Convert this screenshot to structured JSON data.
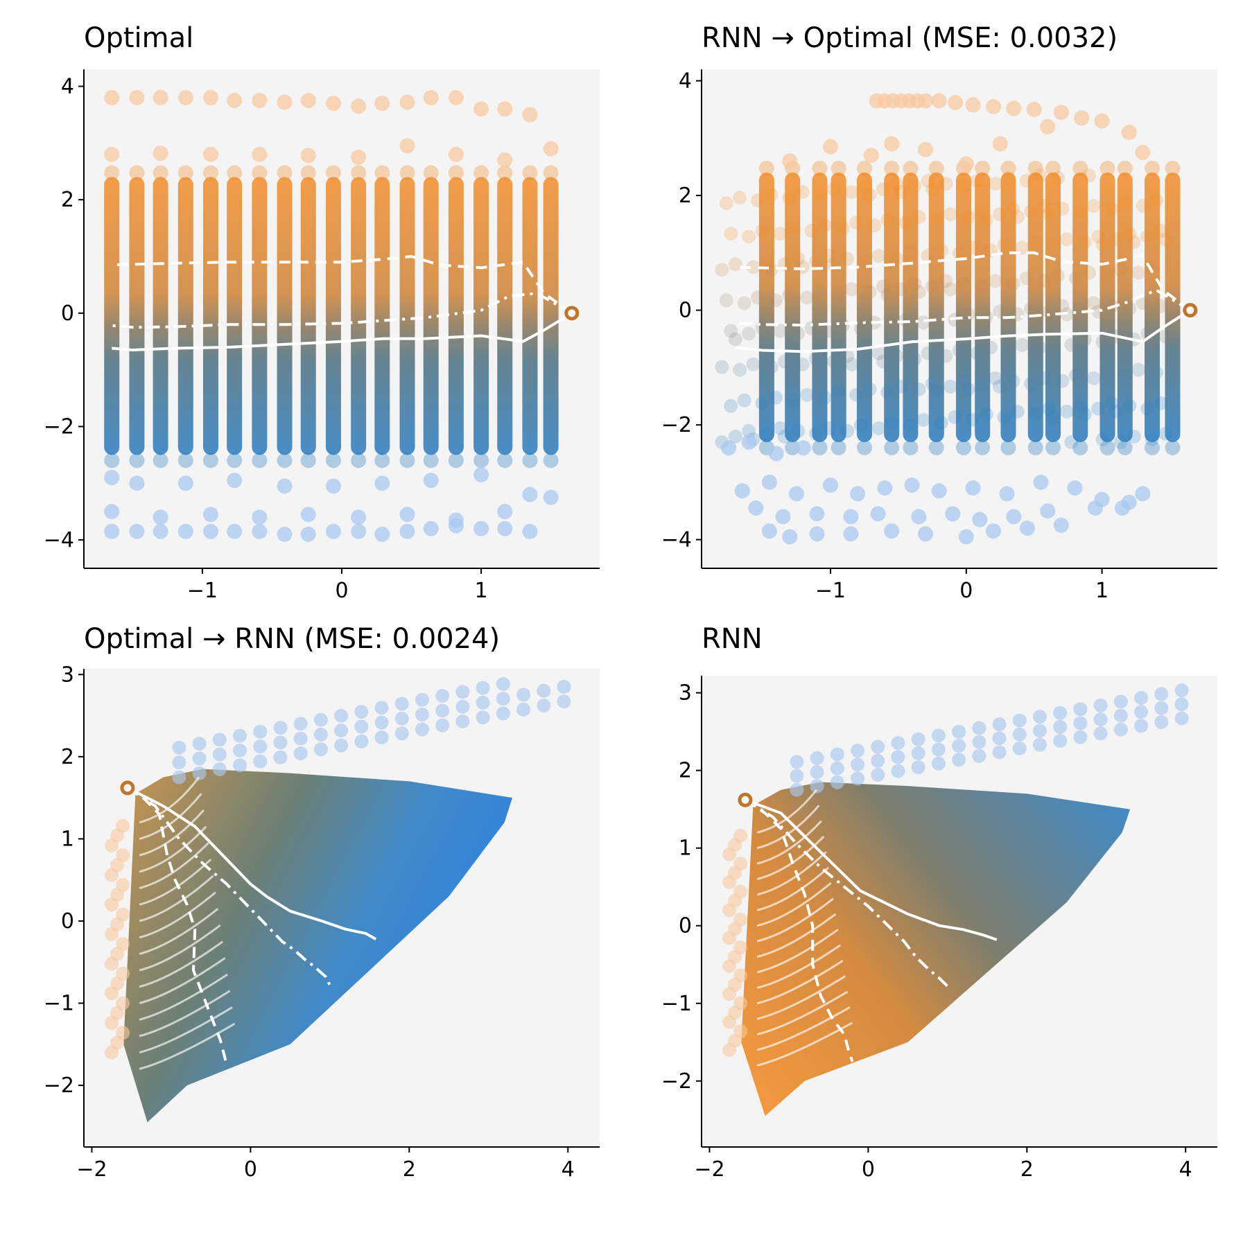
{
  "colors": {
    "orange": "#f28e2b",
    "blue": "#2f7fc1",
    "light_orange": "#f7c9a0",
    "light_blue": "#aac8f0",
    "panel_bg": "#f4f4f4",
    "trajectory": "#ffffff"
  },
  "chart_data": [
    {
      "id": "p0",
      "type": "scatter",
      "title": "Optimal",
      "xlim": [
        -1.85,
        1.85
      ],
      "ylim": [
        -4.5,
        4.3
      ],
      "xticks": [
        -1,
        0,
        1
      ],
      "xtick_labels": [
        "−1",
        "0",
        "1"
      ],
      "yticks": [
        -4,
        -2,
        0,
        2,
        4
      ],
      "ytick_labels": [
        "−4",
        "−2",
        "0",
        "2",
        "4"
      ],
      "grid": false,
      "color_encoding": "orange at high values, blue at low values",
      "columns_x": [
        -1.65,
        -1.47,
        -1.3,
        -1.12,
        -0.94,
        -0.77,
        -0.59,
        -0.41,
        -0.24,
        -0.06,
        0.12,
        0.29,
        0.47,
        0.64,
        0.82,
        1.0,
        1.17,
        1.35,
        1.5
      ],
      "dense_band": [
        -2.5,
        2.4
      ],
      "outliers": [
        {
          "x": -1.65,
          "y": 3.8
        },
        {
          "x": -1.47,
          "y": 3.8
        },
        {
          "x": -1.3,
          "y": 3.8
        },
        {
          "x": -1.12,
          "y": 3.8
        },
        {
          "x": -0.94,
          "y": 3.8
        },
        {
          "x": -0.77,
          "y": 3.75
        },
        {
          "x": -0.59,
          "y": 3.75
        },
        {
          "x": -0.41,
          "y": 3.72
        },
        {
          "x": -0.24,
          "y": 3.75
        },
        {
          "x": -0.06,
          "y": 3.7
        },
        {
          "x": 0.12,
          "y": 3.65
        },
        {
          "x": 0.29,
          "y": 3.7
        },
        {
          "x": 0.47,
          "y": 3.72
        },
        {
          "x": 0.64,
          "y": 3.8
        },
        {
          "x": 0.82,
          "y": 3.8
        },
        {
          "x": 1.0,
          "y": 3.6
        },
        {
          "x": 1.17,
          "y": 3.6
        },
        {
          "x": 1.35,
          "y": 3.5
        },
        {
          "x": -1.65,
          "y": 2.8
        },
        {
          "x": -1.3,
          "y": 2.82
        },
        {
          "x": -0.94,
          "y": 2.8
        },
        {
          "x": -0.59,
          "y": 2.8
        },
        {
          "x": -0.24,
          "y": 2.78
        },
        {
          "x": 0.12,
          "y": 2.75
        },
        {
          "x": 0.47,
          "y": 2.95
        },
        {
          "x": 0.82,
          "y": 2.8
        },
        {
          "x": 1.17,
          "y": 2.7
        },
        {
          "x": 1.5,
          "y": 2.9
        },
        {
          "x": -1.65,
          "y": -2.9
        },
        {
          "x": -1.47,
          "y": -3.0
        },
        {
          "x": -1.12,
          "y": -3.0
        },
        {
          "x": -0.77,
          "y": -2.95
        },
        {
          "x": -0.41,
          "y": -3.05
        },
        {
          "x": -0.06,
          "y": -3.05
        },
        {
          "x": 0.29,
          "y": -3.0
        },
        {
          "x": 0.64,
          "y": -2.95
        },
        {
          "x": 1.0,
          "y": -2.85
        },
        {
          "x": 1.35,
          "y": -3.2
        },
        {
          "x": 1.5,
          "y": -3.25
        },
        {
          "x": -1.65,
          "y": -3.5
        },
        {
          "x": -1.3,
          "y": -3.6
        },
        {
          "x": -0.94,
          "y": -3.55
        },
        {
          "x": -0.59,
          "y": -3.6
        },
        {
          "x": -0.24,
          "y": -3.55
        },
        {
          "x": 0.12,
          "y": -3.6
        },
        {
          "x": 0.47,
          "y": -3.55
        },
        {
          "x": 0.82,
          "y": -3.65
        },
        {
          "x": 1.17,
          "y": -3.5
        },
        {
          "x": -1.65,
          "y": -3.85
        },
        {
          "x": -1.47,
          "y": -3.85
        },
        {
          "x": -1.3,
          "y": -3.85
        },
        {
          "x": -1.12,
          "y": -3.85
        },
        {
          "x": -0.94,
          "y": -3.85
        },
        {
          "x": -0.77,
          "y": -3.85
        },
        {
          "x": -0.59,
          "y": -3.85
        },
        {
          "x": -0.41,
          "y": -3.9
        },
        {
          "x": -0.24,
          "y": -3.9
        },
        {
          "x": -0.06,
          "y": -3.85
        },
        {
          "x": 0.12,
          "y": -3.85
        },
        {
          "x": 0.29,
          "y": -3.9
        },
        {
          "x": 0.47,
          "y": -3.85
        },
        {
          "x": 0.64,
          "y": -3.8
        },
        {
          "x": 0.82,
          "y": -3.75
        },
        {
          "x": 1.0,
          "y": -3.8
        },
        {
          "x": 1.17,
          "y": -3.8
        },
        {
          "x": 1.35,
          "y": -3.85
        }
      ],
      "start_marker": {
        "x": 1.65,
        "y": 0.0
      },
      "trajectories": [
        {
          "style": "dashed",
          "x": [
            1.65,
            1.45,
            1.3,
            1.0,
            0.7,
            0.5,
            0.3,
            0.0,
            -0.4,
            -0.8,
            -1.2,
            -1.65
          ],
          "y": [
            0.0,
            0.35,
            0.9,
            0.8,
            0.85,
            1.0,
            0.95,
            0.9,
            0.9,
            0.9,
            0.88,
            0.85
          ]
        },
        {
          "style": "dashdot",
          "x": [
            1.65,
            1.4,
            1.2,
            1.0,
            0.6,
            0.3,
            0.0,
            -0.4,
            -0.8,
            -1.2,
            -1.5,
            -1.65
          ],
          "y": [
            0.0,
            0.35,
            0.3,
            0.05,
            -0.08,
            -0.13,
            -0.18,
            -0.2,
            -0.2,
            -0.24,
            -0.25,
            -0.22
          ]
        },
        {
          "style": "solid",
          "x": [
            1.65,
            1.45,
            1.3,
            1.0,
            0.6,
            0.3,
            0.0,
            -0.4,
            -0.8,
            -1.2,
            -1.5,
            -1.65
          ],
          "y": [
            0.0,
            -0.3,
            -0.5,
            -0.4,
            -0.45,
            -0.45,
            -0.5,
            -0.55,
            -0.6,
            -0.62,
            -0.65,
            -0.62
          ]
        }
      ]
    },
    {
      "id": "p1",
      "type": "scatter",
      "title": "RNN → Optimal (MSE: 0.0032)",
      "xlim": [
        -1.95,
        1.85
      ],
      "ylim": [
        -4.5,
        4.2
      ],
      "xticks": [
        -1,
        0,
        1
      ],
      "xtick_labels": [
        "−1",
        "0",
        "1"
      ],
      "yticks": [
        -4,
        -2,
        0,
        2,
        4
      ],
      "ytick_labels": [
        "−4",
        "−2",
        "0",
        "2",
        "4"
      ],
      "grid": false,
      "color_encoding": "orange at high values, blue at low values",
      "columns_x": [
        -1.45,
        -1.28,
        -1.1,
        -0.92,
        -0.75,
        -0.57,
        -0.39,
        -0.22,
        -0.04,
        0.14,
        0.31,
        0.49,
        0.66,
        0.84,
        1.02,
        1.19,
        1.37,
        1.5
      ],
      "dense_band": [
        -2.3,
        2.4
      ],
      "outliers": [
        {
          "x": -0.66,
          "y": 3.65
        },
        {
          "x": -0.6,
          "y": 3.65
        },
        {
          "x": -0.54,
          "y": 3.65
        },
        {
          "x": -0.48,
          "y": 3.65
        },
        {
          "x": -0.42,
          "y": 3.65
        },
        {
          "x": -0.36,
          "y": 3.65
        },
        {
          "x": -0.3,
          "y": 3.65
        },
        {
          "x": -0.2,
          "y": 3.65
        },
        {
          "x": -0.08,
          "y": 3.62
        },
        {
          "x": 0.05,
          "y": 3.58
        },
        {
          "x": 0.2,
          "y": 3.55
        },
        {
          "x": 0.35,
          "y": 3.52
        },
        {
          "x": 0.5,
          "y": 3.5
        },
        {
          "x": 0.7,
          "y": 3.45
        },
        {
          "x": 0.85,
          "y": 3.35
        },
        {
          "x": 1.0,
          "y": 3.3
        },
        {
          "x": 1.2,
          "y": 3.1
        },
        {
          "x": 0.6,
          "y": 3.2
        },
        {
          "x": -1.3,
          "y": 2.6
        },
        {
          "x": -1.0,
          "y": 2.85
        },
        {
          "x": -0.7,
          "y": 2.7
        },
        {
          "x": -0.55,
          "y": 2.9
        },
        {
          "x": -0.3,
          "y": 2.8
        },
        {
          "x": 0.0,
          "y": 2.55
        },
        {
          "x": 0.25,
          "y": 2.9
        },
        {
          "x": 1.3,
          "y": 2.75
        },
        {
          "x": -1.75,
          "y": -2.4
        },
        {
          "x": -1.6,
          "y": -2.3
        },
        {
          "x": -1.4,
          "y": -2.5
        },
        {
          "x": -1.2,
          "y": -2.4
        },
        {
          "x": -1.65,
          "y": -3.15
        },
        {
          "x": -1.45,
          "y": -3.0
        },
        {
          "x": -1.25,
          "y": -3.2
        },
        {
          "x": -1.0,
          "y": -3.05
        },
        {
          "x": -0.8,
          "y": -3.2
        },
        {
          "x": -0.6,
          "y": -3.1
        },
        {
          "x": -0.4,
          "y": -3.05
        },
        {
          "x": -0.2,
          "y": -3.15
        },
        {
          "x": 0.05,
          "y": -3.1
        },
        {
          "x": 0.3,
          "y": -3.2
        },
        {
          "x": 0.55,
          "y": -3.0
        },
        {
          "x": 0.8,
          "y": -3.1
        },
        {
          "x": 1.0,
          "y": -3.3
        },
        {
          "x": 1.2,
          "y": -3.35
        },
        {
          "x": 1.3,
          "y": -3.2
        },
        {
          "x": -1.55,
          "y": -3.45
        },
        {
          "x": -1.35,
          "y": -3.6
        },
        {
          "x": -1.1,
          "y": -3.55
        },
        {
          "x": -0.85,
          "y": -3.6
        },
        {
          "x": -0.65,
          "y": -3.55
        },
        {
          "x": -0.35,
          "y": -3.6
        },
        {
          "x": -0.1,
          "y": -3.55
        },
        {
          "x": 0.1,
          "y": -3.65
        },
        {
          "x": 0.35,
          "y": -3.6
        },
        {
          "x": 0.6,
          "y": -3.5
        },
        {
          "x": 0.95,
          "y": -3.45
        },
        {
          "x": 1.15,
          "y": -3.45
        },
        {
          "x": -1.45,
          "y": -3.85
        },
        {
          "x": -1.3,
          "y": -3.95
        },
        {
          "x": -1.1,
          "y": -3.9
        },
        {
          "x": -0.85,
          "y": -3.9
        },
        {
          "x": -0.55,
          "y": -3.85
        },
        {
          "x": -0.3,
          "y": -3.9
        },
        {
          "x": 0.0,
          "y": -3.95
        },
        {
          "x": 0.2,
          "y": -3.85
        },
        {
          "x": 0.45,
          "y": -3.8
        },
        {
          "x": 0.7,
          "y": -3.75
        }
      ],
      "start_marker": {
        "x": 1.65,
        "y": 0.0
      },
      "trajectories": [
        {
          "style": "dashed",
          "x": [
            1.65,
            1.45,
            1.3,
            1.0,
            0.7,
            0.5,
            0.3,
            0.0,
            -0.4,
            -0.8,
            -1.2,
            -1.7
          ],
          "y": [
            0.0,
            0.35,
            0.95,
            0.8,
            0.85,
            1.0,
            1.0,
            0.9,
            0.82,
            0.75,
            0.72,
            0.75
          ]
        },
        {
          "style": "dashdot",
          "x": [
            1.65,
            1.4,
            1.2,
            1.0,
            0.6,
            0.3,
            0.0,
            -0.4,
            -0.8,
            -1.2,
            -1.5,
            -1.7
          ],
          "y": [
            0.0,
            0.35,
            0.15,
            0.0,
            -0.08,
            -0.13,
            -0.13,
            -0.2,
            -0.22,
            -0.26,
            -0.25,
            -0.22
          ]
        },
        {
          "style": "solid",
          "x": [
            1.65,
            1.45,
            1.3,
            1.0,
            0.6,
            0.3,
            0.0,
            -0.4,
            -0.8,
            -1.2,
            -1.5,
            -1.7
          ],
          "y": [
            0.0,
            -0.3,
            -0.55,
            -0.4,
            -0.42,
            -0.45,
            -0.5,
            -0.55,
            -0.68,
            -0.72,
            -0.7,
            -0.65
          ]
        }
      ]
    },
    {
      "id": "p2",
      "type": "scatter",
      "title": "Optimal → RNN (MSE: 0.0024)",
      "xlim": [
        -2.1,
        4.4
      ],
      "ylim": [
        -2.75,
        3.07
      ],
      "xticks": [
        -2,
        0,
        2,
        4
      ],
      "xtick_labels": [
        "−2",
        "0",
        "2",
        "4"
      ],
      "yticks": [
        -2,
        -1,
        0,
        1,
        2,
        3
      ],
      "ytick_labels": [
        "−2",
        "−1",
        "0",
        "1",
        "2",
        "3"
      ],
      "grid": false,
      "color_encoding": "orange at upper-left edge, blue toward the right",
      "arc_count": 16,
      "start_marker": {
        "x": -1.55,
        "y": 1.62
      },
      "trajectories": [
        {
          "style": "dashed",
          "x": [
            -1.55,
            -1.35,
            -1.15,
            -1.05,
            -0.95,
            -0.8,
            -0.7,
            -0.72,
            -0.6,
            -0.48,
            -0.38,
            -0.3
          ],
          "y": [
            1.62,
            1.5,
            1.3,
            0.8,
            0.5,
            0.2,
            -0.1,
            -0.6,
            -0.9,
            -1.2,
            -1.45,
            -1.75
          ]
        },
        {
          "style": "dashdot",
          "x": [
            -1.55,
            -1.2,
            -0.9,
            -0.6,
            -0.3,
            -0.05,
            0.2,
            0.4,
            0.55,
            0.7,
            0.8,
            0.95,
            1.0
          ],
          "y": [
            1.62,
            1.4,
            1.0,
            0.7,
            0.45,
            0.2,
            -0.05,
            -0.25,
            -0.35,
            -0.48,
            -0.55,
            -0.68,
            -0.78
          ]
        },
        {
          "style": "solid",
          "x": [
            -1.55,
            -1.1,
            -0.7,
            -0.4,
            0.0,
            0.2,
            0.5,
            0.9,
            1.2,
            1.45,
            1.58
          ],
          "y": [
            1.62,
            1.4,
            1.15,
            0.85,
            0.45,
            0.3,
            0.12,
            0.0,
            -0.1,
            -0.15,
            -0.22
          ]
        }
      ]
    },
    {
      "id": "p3",
      "type": "scatter",
      "title": "RNN",
      "xlim": [
        -2.1,
        4.4
      ],
      "ylim": [
        -2.85,
        3.22
      ],
      "xticks": [
        -2,
        0,
        2,
        4
      ],
      "xtick_labels": [
        "−2",
        "0",
        "2",
        "4"
      ],
      "yticks": [
        -2,
        -1,
        0,
        1,
        2,
        3
      ],
      "ytick_labels": [
        "−2",
        "−1",
        "0",
        "1",
        "2",
        "3"
      ],
      "grid": false,
      "color_encoding": "orange at lower-left, blue toward the upper right",
      "arc_count": 16,
      "start_marker": {
        "x": -1.55,
        "y": 1.62
      },
      "trajectories": [
        {
          "style": "dashed",
          "x": [
            -1.55,
            -1.3,
            -1.1,
            -0.95,
            -0.8,
            -0.7,
            -0.7,
            -0.6,
            -0.45,
            -0.3,
            -0.25,
            -0.2
          ],
          "y": [
            1.62,
            1.45,
            1.25,
            0.8,
            0.4,
            0.0,
            -0.5,
            -0.9,
            -1.2,
            -1.4,
            -1.6,
            -1.75
          ]
        },
        {
          "style": "dashdot",
          "x": [
            -1.55,
            -1.2,
            -0.9,
            -0.6,
            -0.3,
            0.0,
            0.2,
            0.45,
            0.6,
            0.75,
            0.9,
            1.0
          ],
          "y": [
            1.62,
            1.4,
            1.05,
            0.75,
            0.5,
            0.25,
            0.05,
            -0.2,
            -0.4,
            -0.55,
            -0.68,
            -0.78
          ]
        },
        {
          "style": "solid",
          "x": [
            -1.55,
            -1.1,
            -0.8,
            -0.5,
            -0.1,
            0.2,
            0.5,
            0.9,
            1.2,
            1.45,
            1.62
          ],
          "y": [
            1.62,
            1.45,
            1.15,
            0.85,
            0.45,
            0.3,
            0.15,
            0.0,
            -0.05,
            -0.12,
            -0.18
          ]
        }
      ]
    }
  ]
}
